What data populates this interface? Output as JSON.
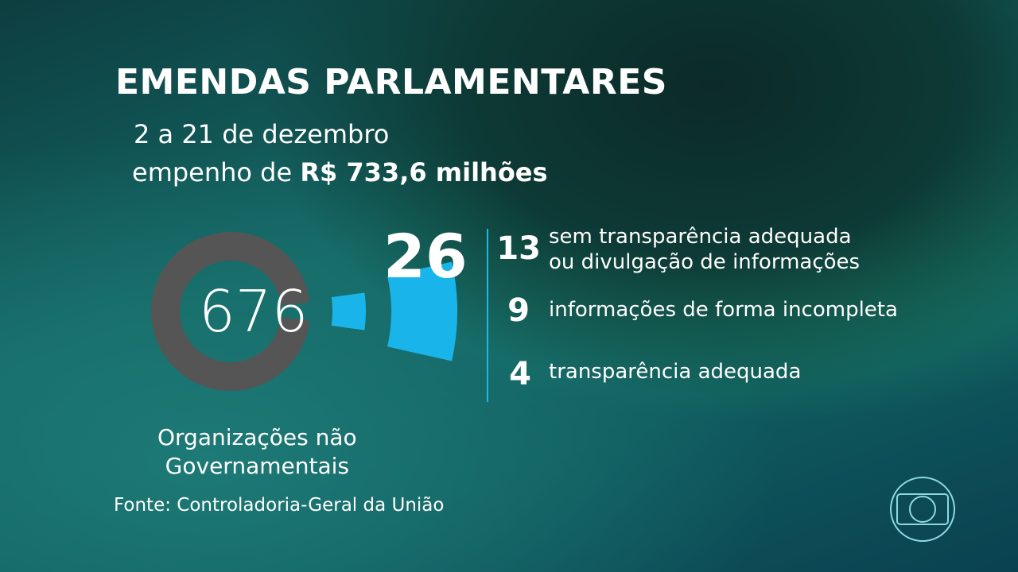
{
  "title": "EMENDAS PARLAMENTARES",
  "period": "2 a 21 de dezembro",
  "commitment_prefix": "empenho de",
  "commitment_value": "R$ 733,6 milhões",
  "colors": {
    "ring": "#555555",
    "highlight": "#19b5ea",
    "divider": "#1cb8e6"
  },
  "chart_data": {
    "type": "pie",
    "style": "donut with exploded segment",
    "categories": [
      "676",
      "26"
    ],
    "values": [
      676,
      26
    ],
    "center_label": "676",
    "exploded_label": "26",
    "caption": [
      "Organizações não",
      "Governamentais"
    ],
    "breakdown": [
      {
        "value": "13",
        "label": [
          "sem transparência adequada",
          "ou divulgação de informações"
        ]
      },
      {
        "value": "9",
        "label": [
          "informações de forma incompleta"
        ]
      },
      {
        "value": "4",
        "label": [
          "transparência adequada"
        ]
      }
    ]
  },
  "source": "Fonte: Controladoria-Geral da União",
  "logo": "globo-logo"
}
